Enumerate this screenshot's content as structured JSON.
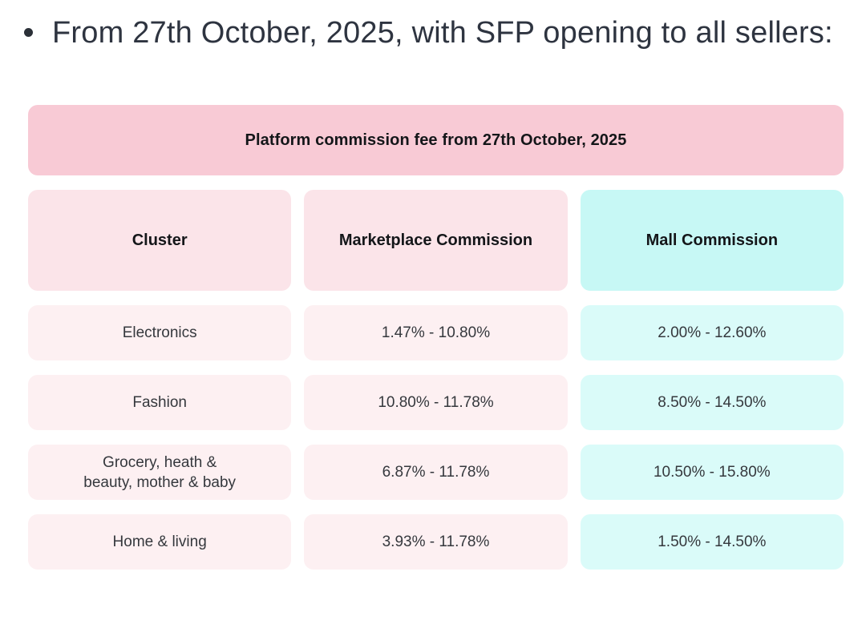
{
  "intro": {
    "bullet_text": "From 27th October, 2025, with SFP opening to all sellers:"
  },
  "table": {
    "banner": "Platform commission fee from 27th October, 2025",
    "columns": [
      {
        "label": "Cluster"
      },
      {
        "label": "Marketplace Commission"
      },
      {
        "label": "Mall Commission"
      }
    ],
    "rows": [
      {
        "cluster": "Electronics",
        "marketplace": "1.47% - 10.80%",
        "mall": "2.00% - 12.60%"
      },
      {
        "cluster": "Fashion",
        "marketplace": "10.80% - 11.78%",
        "mall": "8.50% - 14.50%"
      },
      {
        "cluster": "Grocery, heath &\nbeauty, mother & baby",
        "marketplace": "6.87% - 11.78%",
        "mall": "10.50% - 15.80%"
      },
      {
        "cluster": "Home & living",
        "marketplace": "3.93% - 11.78%",
        "mall": "1.50% - 14.50%"
      }
    ],
    "colors": {
      "banner_pink": "#f8cad5",
      "header_pink": "#fbe4e9",
      "header_cyan": "#c7f8f5",
      "row_pink": "#fdf0f2",
      "row_cyan": "#dafbf9",
      "text_dark": "#35383d",
      "text_bold": "#141619"
    }
  }
}
